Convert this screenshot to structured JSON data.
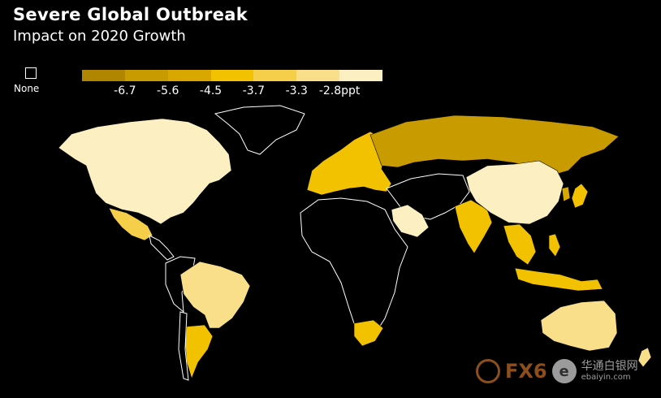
{
  "header": {
    "title": "Severe Global Outbreak",
    "subtitle": "Impact on 2020 Growth"
  },
  "legend": {
    "none_label": "None",
    "colors": [
      "#b08600",
      "#c89b00",
      "#d9a800",
      "#f2c200",
      "#f5cf4a",
      "#fadf8a",
      "#fcefc2"
    ],
    "ticks": [
      "-6.7",
      "-5.6",
      "-4.5",
      "-3.7",
      "-3.3",
      "-2.8ppt"
    ]
  },
  "map_data": {
    "regions": [
      {
        "name": "North America",
        "bin": 6
      },
      {
        "name": "Mexico",
        "bin": 4
      },
      {
        "name": "Brazil",
        "bin": 5
      },
      {
        "name": "Argentina",
        "bin": 3
      },
      {
        "name": "Western Europe",
        "bin": 3
      },
      {
        "name": "Russia",
        "bin": 1
      },
      {
        "name": "China",
        "bin": 6
      },
      {
        "name": "India",
        "bin": 3
      },
      {
        "name": "Saudi Arabia",
        "bin": 6
      },
      {
        "name": "South Africa",
        "bin": 3
      },
      {
        "name": "Southeast Asia",
        "bin": 3
      },
      {
        "name": "Australia",
        "bin": 5
      }
    ]
  },
  "watermark": {
    "brand": "FX6",
    "logo_letter": "e",
    "cn": "华通白银网",
    "url": "ebaiyin.com"
  }
}
